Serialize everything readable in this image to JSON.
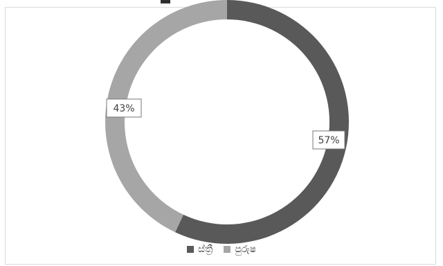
{
  "chart_data": {
    "type": "pie",
    "title": "",
    "series": [
      {
        "name": "ස්ත්‍රී",
        "value": 57,
        "label": "57%",
        "color": "#595959"
      },
      {
        "name": "පුරුෂ",
        "value": 43,
        "label": "43%",
        "color": "#a6a6a6"
      }
    ],
    "legend": "bottom",
    "donut": true
  }
}
